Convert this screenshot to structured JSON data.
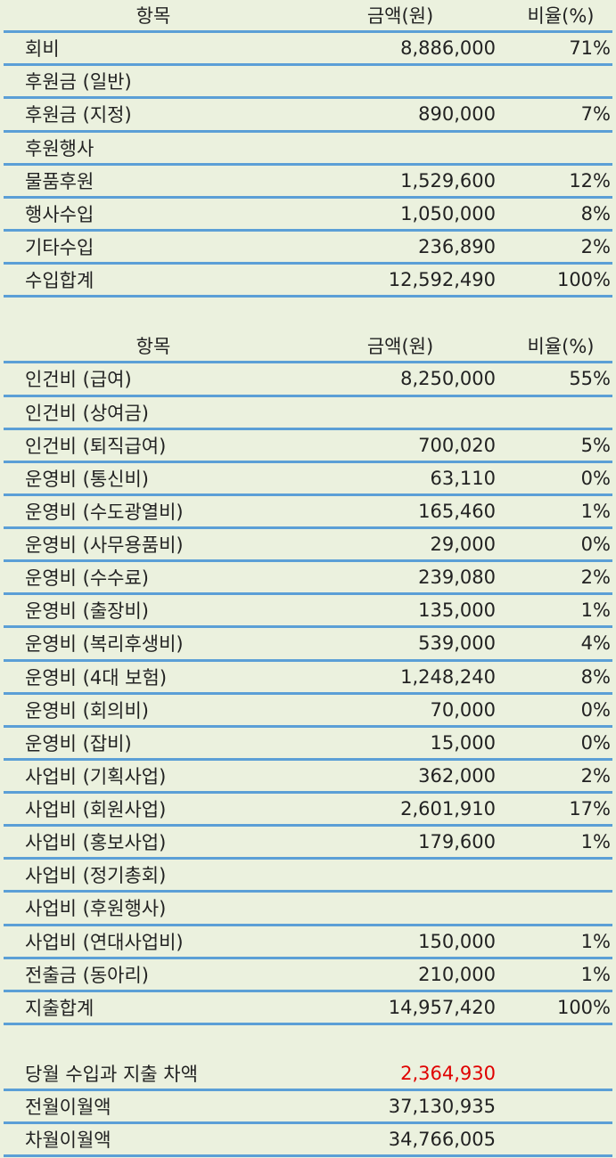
{
  "income": {
    "header": [
      "항목",
      "금액(원)",
      "비율(%)"
    ],
    "rows": [
      {
        "item": "회비",
        "amount": "8,886,000",
        "ratio": "71%"
      },
      {
        "item": "후원금 (일반)"
      },
      {
        "item": "후원금 (지정)",
        "amount": "890,000",
        "ratio": "7%"
      },
      {
        "item": "후원행사"
      },
      {
        "item": "물품후원",
        "amount": "1,529,600",
        "ratio": "12%"
      },
      {
        "item": "행사수입",
        "amount": "1,050,000",
        "ratio": "8%"
      },
      {
        "item": "기타수입",
        "amount": "236,890",
        "ratio": "2%"
      },
      {
        "item": "수입합계",
        "amount": "12,592,490",
        "ratio": "100%"
      }
    ]
  },
  "expense": {
    "header": [
      "항목",
      "금액(원)",
      "비율(%)"
    ],
    "rows": [
      {
        "item": "인건비 (급여)",
        "amount": "8,250,000",
        "ratio": "55%"
      },
      {
        "item": "인건비 (상여금)"
      },
      {
        "item": "인건비 (퇴직급여)",
        "amount": "700,020",
        "ratio": "5%"
      },
      {
        "item": "운영비 (통신비)",
        "amount": "63,110",
        "ratio": "0%"
      },
      {
        "item": "운영비 (수도광열비)",
        "amount": "165,460",
        "ratio": "1%"
      },
      {
        "item": "운영비 (사무용품비)",
        "amount": "29,000",
        "ratio": "0%"
      },
      {
        "item": "운영비 (수수료)",
        "amount": "239,080",
        "ratio": "2%"
      },
      {
        "item": "운영비 (출장비)",
        "amount": "135,000",
        "ratio": "1%"
      },
      {
        "item": "운영비 (복리후생비)",
        "amount": "539,000",
        "ratio": "4%"
      },
      {
        "item": "운영비 (4대 보험)",
        "amount": "1,248,240",
        "ratio": "8%"
      },
      {
        "item": "운영비 (회의비)",
        "amount": "70,000",
        "ratio": "0%"
      },
      {
        "item": "운영비 (잡비)",
        "amount": "15,000",
        "ratio": "0%"
      },
      {
        "item": "사업비 (기획사업)",
        "amount": "362,000",
        "ratio": "2%"
      },
      {
        "item": "사업비 (회원사업)",
        "amount": "2,601,910",
        "ratio": "17%"
      },
      {
        "item": "사업비 (홍보사업)",
        "amount": "179,600",
        "ratio": "1%"
      },
      {
        "item": "사업비 (정기총회)"
      },
      {
        "item": "사업비 (후원행사)"
      },
      {
        "item": "사업비 (연대사업비)",
        "amount": "150,000",
        "ratio": "1%"
      },
      {
        "item": "전출금 (동아리)",
        "amount": "210,000",
        "ratio": "1%"
      },
      {
        "item": "지출합계",
        "amount": "14,957,420",
        "ratio": "100%"
      }
    ]
  },
  "summary": {
    "rows": [
      {
        "item": "당월 수입과 지출 차액",
        "amount": "2,364,930"
      },
      {
        "item": "전월이월액",
        "amount": "37,130,935"
      },
      {
        "item": "차월이월액",
        "amount": "34,766,005"
      }
    ]
  }
}
